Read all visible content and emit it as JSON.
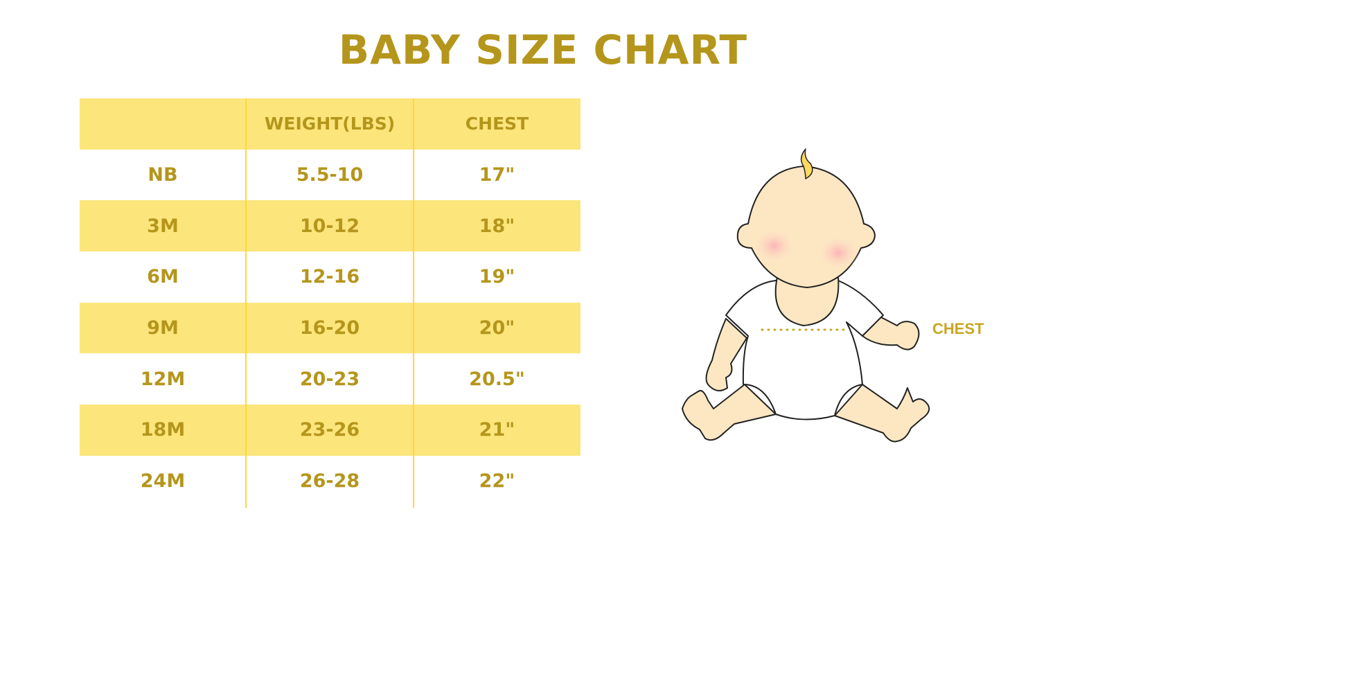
{
  "title": "BABY SIZE CHART",
  "table": {
    "headers": [
      "",
      "WEIGHT(LBS)",
      "CHEST"
    ],
    "rows": [
      [
        "NB",
        "5.5-10",
        "17\""
      ],
      [
        "3M",
        "10-12",
        "18\""
      ],
      [
        "6M",
        "12-16",
        "19\""
      ],
      [
        "9M",
        "16-20",
        "20\""
      ],
      [
        "12M",
        "20-23",
        "20.5\""
      ],
      [
        "18M",
        "23-26",
        "21\""
      ],
      [
        "24M",
        "26-28",
        "22\""
      ]
    ]
  },
  "illustration": {
    "chest_label": "CHEST"
  },
  "colors": {
    "text": "#b5961c",
    "band": "#fce57b",
    "divider": "#fcd93b",
    "skin": "#fde7c3"
  }
}
